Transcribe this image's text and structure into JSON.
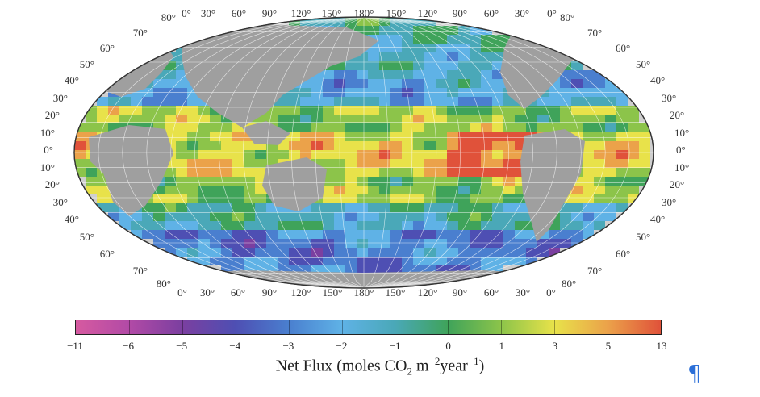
{
  "top_lon_labels": [
    "0°",
    "30°",
    "60°",
    "90°",
    "120°",
    "150°",
    "180°",
    "150°",
    "120°",
    "90°",
    "60°",
    "30°",
    "0°"
  ],
  "bottom_lon_labels": [
    "0°",
    "30°",
    "60°",
    "90°",
    "120°",
    "150°",
    "180°",
    "150°",
    "120°",
    "90°",
    "60°",
    "30°",
    "0°"
  ],
  "left_lat_labels": [
    "80°",
    "70°",
    "60°",
    "50°",
    "40°",
    "30°",
    "20°",
    "10°",
    "0°",
    "10°",
    "20°",
    "30°",
    "40°",
    "50°",
    "60°",
    "70°",
    "80°"
  ],
  "right_lat_labels": [
    "80°",
    "70°",
    "60°",
    "50°",
    "40°",
    "30°",
    "20°",
    "10°",
    "0°",
    "10°",
    "20°",
    "30°",
    "40°",
    "50°",
    "60°",
    "70°",
    "80°"
  ],
  "colorbar": {
    "ticks": [
      "−11",
      "−6",
      "−5",
      "−4",
      "−3",
      "−2",
      "−1",
      "0",
      "1",
      "3",
      "5",
      "13"
    ],
    "colors": [
      "#d65aa0",
      "#b24aa6",
      "#7b3fa0",
      "#4e4fb3",
      "#4a7fcf",
      "#5fb2e6",
      "#4aa8b8",
      "#3fa35a",
      "#8cc44a",
      "#e8e24a",
      "#eba24a",
      "#e0523a"
    ],
    "title_prefix": "Net Flux (moles CO",
    "title_sub": "2",
    "title_mid": " m",
    "title_sup1": "−2",
    "title_mid2": "year",
    "title_sup2": "−1",
    "title_suffix": ")"
  },
  "pilcrow": "¶"
}
